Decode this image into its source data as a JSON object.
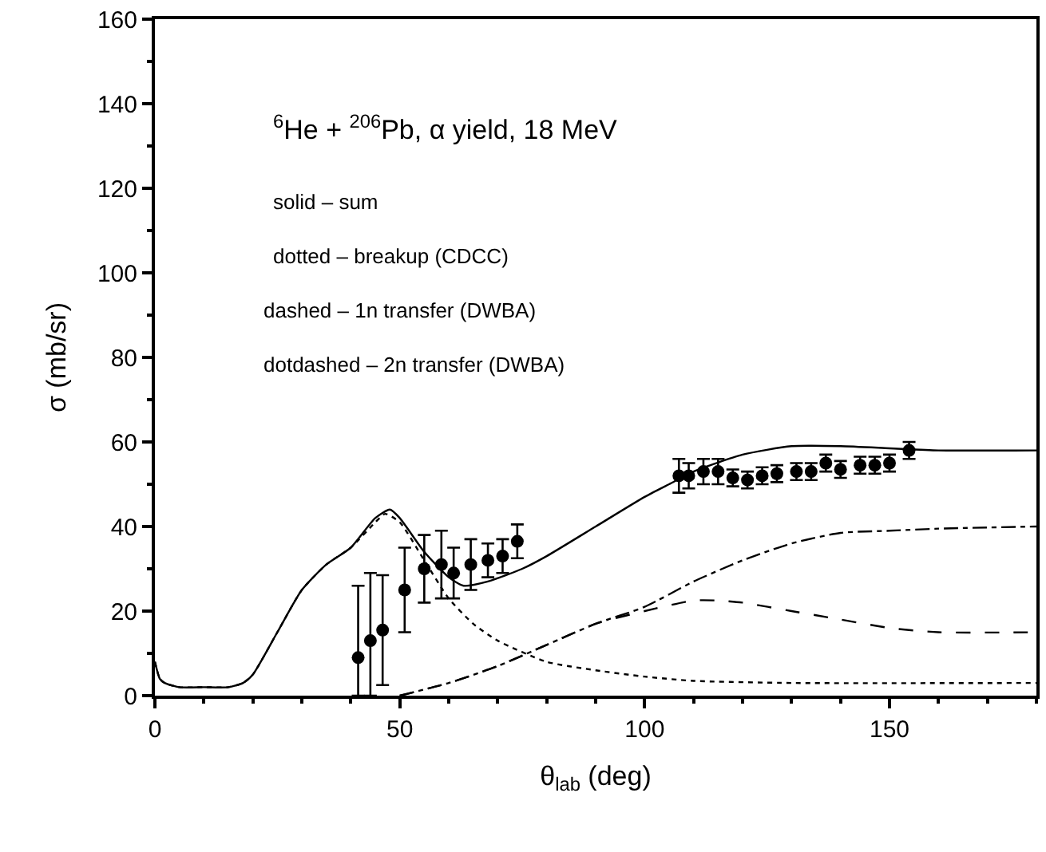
{
  "chart_data": {
    "type": "line",
    "xlabel": "θ$_{lab}$ (deg)",
    "ylabel": "σ (mb/sr)",
    "annotations": [
      "$^{6}$He + $^{206}$Pb, α yield, 18 MeV",
      "solid – sum",
      "dotted – breakup (CDCC)",
      "dashed – 1n transfer (DWBA)",
      "dotdashed – 2n transfer (DWBA)"
    ],
    "xlim": [
      0,
      180
    ],
    "xticks": [
      0,
      50,
      100,
      150
    ],
    "ylim": [
      0,
      160
    ],
    "yticks": [
      0,
      20,
      40,
      60,
      80,
      100,
      120,
      140,
      160
    ],
    "series": [
      {
        "line_style": "solid",
        "color": "#000000",
        "x": [
          0,
          1,
          2,
          5,
          10,
          15,
          18,
          20,
          25,
          30,
          35,
          40,
          45,
          48,
          50,
          55,
          60,
          63,
          68,
          75,
          80,
          90,
          100,
          105,
          110,
          120,
          130,
          140,
          150,
          160,
          180
        ],
        "values": [
          8,
          4,
          3,
          2,
          2,
          2,
          3,
          5,
          15,
          25,
          31,
          35,
          42,
          44,
          42,
          34,
          28,
          26,
          27,
          30,
          33,
          40,
          47,
          50,
          53,
          57,
          59,
          59,
          58.5,
          58,
          58
        ]
      },
      {
        "line_style": "dotted",
        "color": "#000000",
        "x": [
          0,
          1,
          2,
          5,
          10,
          15,
          18,
          20,
          25,
          30,
          35,
          40,
          45,
          47,
          50,
          55,
          60,
          65,
          70,
          80,
          90,
          100,
          110,
          130,
          180
        ],
        "values": [
          8,
          4,
          3,
          2,
          2,
          2,
          3,
          5,
          15,
          25,
          31,
          35,
          41,
          43,
          41,
          32,
          23,
          17,
          13,
          8,
          6,
          4.5,
          3.5,
          3,
          3
        ]
      },
      {
        "line_style": "dashed",
        "color": "#000000",
        "x": [
          50,
          60,
          70,
          80,
          90,
          100,
          110,
          115,
          120,
          130,
          140,
          150,
          160,
          180
        ],
        "values": [
          0,
          3,
          7,
          12,
          17,
          20,
          22.5,
          22.5,
          22,
          20,
          18,
          16,
          15,
          15
        ]
      },
      {
        "line_style": "dashdot",
        "color": "#000000",
        "x": [
          50,
          60,
          70,
          80,
          90,
          100,
          110,
          120,
          130,
          140,
          150,
          160,
          180
        ],
        "values": [
          0,
          3,
          7,
          12,
          17,
          21,
          27,
          32,
          36,
          38.5,
          39,
          39.5,
          40
        ]
      },
      {
        "type": "scatter",
        "marker": "circle",
        "color": "#000000",
        "x": [
          41.5,
          44,
          46.5,
          51,
          55,
          58.5,
          61,
          64.5,
          68,
          71,
          74,
          107,
          109,
          112,
          115,
          118,
          121,
          124,
          127,
          131,
          134,
          137,
          140,
          144,
          147,
          150,
          154
        ],
        "values": [
          9,
          13,
          15.5,
          25,
          30,
          31,
          29,
          31,
          32,
          33,
          36.5,
          52,
          52,
          53,
          53,
          51.5,
          51,
          52,
          52.5,
          53,
          53,
          55,
          53.5,
          54.5,
          54.5,
          55,
          58
        ],
        "errors": [
          [
            0,
            26
          ],
          [
            0,
            29
          ],
          13,
          10,
          8,
          8,
          6,
          6,
          4,
          4,
          4,
          4,
          3,
          3,
          3,
          2,
          2,
          2,
          2,
          2,
          2,
          2,
          2,
          2,
          2,
          2,
          2
        ]
      }
    ]
  }
}
